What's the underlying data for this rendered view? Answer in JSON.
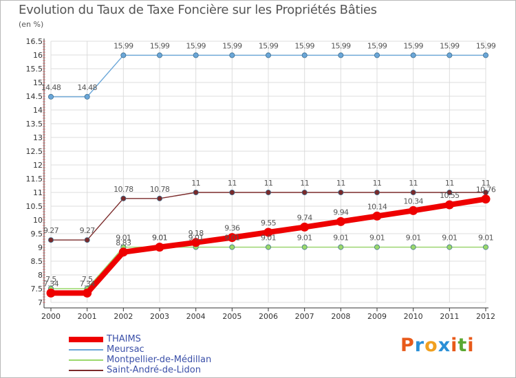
{
  "header": {
    "title": "Evolution du Taux de Taxe Foncière sur les Propriétés Bâties",
    "unit": "(en %)"
  },
  "logo": {
    "text": "Proxiti",
    "letters": [
      "P",
      "r",
      "o",
      "x",
      "i",
      "t",
      "i"
    ],
    "colors": [
      "#e85a1a",
      "#2a8fd6",
      "#f0a020",
      "#2a8fd6",
      "#e85a1a",
      "#5aa832",
      "#e85a1a"
    ]
  },
  "chart_data": {
    "type": "line",
    "title": "Evolution du Taux de Taxe Foncière sur les Propriétés Bâties",
    "ylabel": "(en %)",
    "xlabel": "",
    "categories": [
      "2000",
      "2001",
      "2002",
      "2003",
      "2004",
      "2005",
      "2006",
      "2007",
      "2008",
      "2009",
      "2010",
      "2011",
      "2012"
    ],
    "ylim": [
      7,
      16.5
    ],
    "yticks": [
      "7",
      "7.5",
      "8",
      "8.5",
      "9",
      "9.5",
      "10",
      "10.5",
      "11",
      "11.5",
      "12",
      "12.5",
      "13",
      "13.5",
      "14",
      "14.5",
      "15",
      "15.5",
      "16",
      "16.5"
    ],
    "grid": true,
    "series": [
      {
        "name": "THAIMS",
        "color": "#ee0000",
        "values": [
          7.34,
          7.34,
          8.83,
          9.01,
          9.18,
          9.36,
          9.55,
          9.74,
          9.94,
          10.14,
          10.34,
          10.55,
          10.76
        ],
        "labels": [
          "7.34",
          "7.34",
          "8.83",
          "9.01",
          "9.18",
          "9.36",
          "9.55",
          "9.74",
          "9.94",
          "10.14",
          "10.34",
          "10.55",
          "10.76"
        ]
      },
      {
        "name": "Meursac",
        "color": "#6aa6d8",
        "values": [
          14.48,
          14.48,
          15.99,
          15.99,
          15.99,
          15.99,
          15.99,
          15.99,
          15.99,
          15.99,
          15.99,
          15.99,
          15.99
        ],
        "labels": [
          "14.48",
          "14.48",
          "15.99",
          "15.99",
          "15.99",
          "15.99",
          "15.99",
          "15.99",
          "15.99",
          "15.99",
          "15.99",
          "15.99",
          "15.99"
        ]
      },
      {
        "name": "Montpellier-de-Médillan",
        "color": "#9ad86a",
        "values": [
          7.5,
          7.5,
          9.01,
          9.01,
          9.01,
          9.01,
          9.01,
          9.01,
          9.01,
          9.01,
          9.01,
          9.01,
          9.01
        ],
        "labels": [
          "7.5",
          "7.5",
          "9.01",
          "9.01",
          "9.01",
          "9.01",
          "9.01",
          "9.01",
          "9.01",
          "9.01",
          "9.01",
          "9.01",
          "9.01"
        ]
      },
      {
        "name": "Saint-André-de-Lidon",
        "color": "#7a2a2a",
        "values": [
          9.27,
          9.27,
          10.78,
          10.78,
          11,
          11,
          11,
          11,
          11,
          11,
          11,
          11,
          11
        ],
        "labels": [
          "9.27",
          "9.27",
          "10.78",
          "10.78",
          "11",
          "11",
          "11",
          "11",
          "11",
          "11",
          "11",
          "11",
          "11"
        ]
      }
    ],
    "legend_position": "bottom-left"
  }
}
